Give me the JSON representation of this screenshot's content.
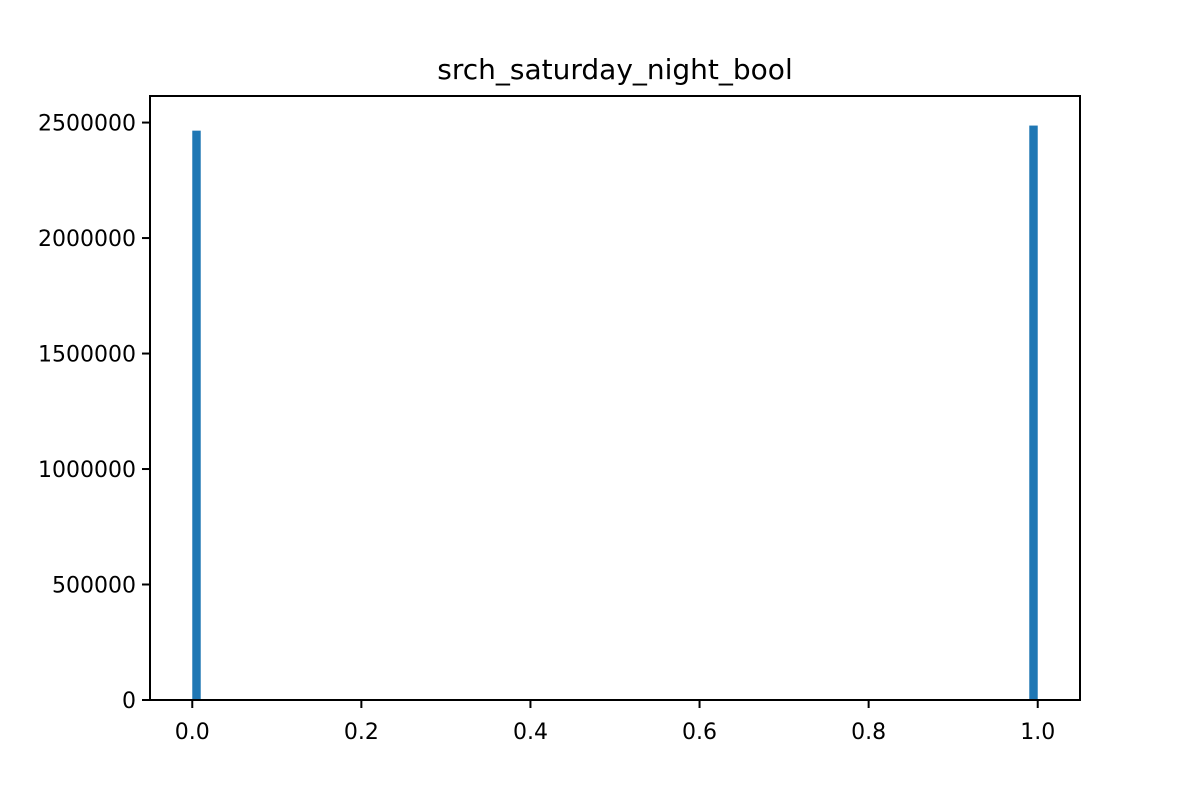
{
  "chart_data": {
    "type": "bar",
    "title": "srch_saturday_night_bool",
    "xlabel": "",
    "ylabel": "",
    "xlim": [
      -0.05,
      1.05
    ],
    "ylim": [
      0,
      2615000
    ],
    "x_ticks": [
      {
        "value": 0.0,
        "label": "0.0"
      },
      {
        "value": 0.2,
        "label": "0.2"
      },
      {
        "value": 0.4,
        "label": "0.4"
      },
      {
        "value": 0.6,
        "label": "0.6"
      },
      {
        "value": 0.8,
        "label": "0.8"
      },
      {
        "value": 1.0,
        "label": "1.0"
      }
    ],
    "y_ticks": [
      {
        "value": 0,
        "label": "0"
      },
      {
        "value": 500000,
        "label": "500000"
      },
      {
        "value": 1000000,
        "label": "1000000"
      },
      {
        "value": 1500000,
        "label": "1500000"
      },
      {
        "value": 2000000,
        "label": "2000000"
      },
      {
        "value": 2500000,
        "label": "2500000"
      }
    ],
    "bins": [
      {
        "x_start": 0.0,
        "x_end": 0.01,
        "value": 2465000
      },
      {
        "x_start": 0.99,
        "x_end": 1.0,
        "value": 2487000
      }
    ],
    "bar_color": "#1f77b4",
    "grid": false,
    "legend": false
  }
}
